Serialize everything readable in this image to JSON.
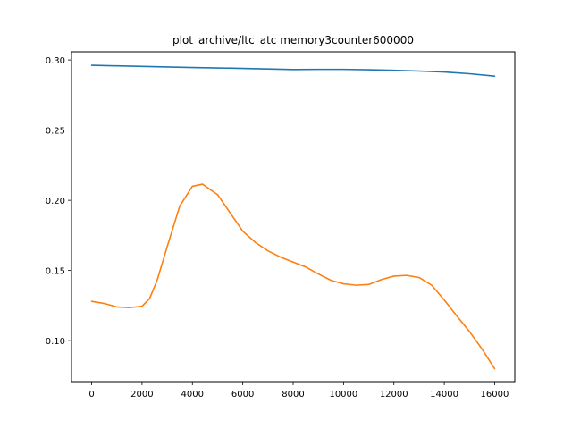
{
  "chart_data": {
    "type": "line",
    "title": "plot_archive/ltc_atc memory3counter600000",
    "xlabel": "",
    "ylabel": "",
    "xlim": [
      -800,
      16800
    ],
    "ylim": [
      0.0708,
      0.3058
    ],
    "x_ticks": [
      0,
      2000,
      4000,
      6000,
      8000,
      10000,
      12000,
      14000,
      16000
    ],
    "x_tick_labels": [
      "0",
      "2000",
      "4000",
      "6000",
      "8000",
      "10000",
      "12000",
      "14000",
      "16000"
    ],
    "y_ticks": [
      0.1,
      0.15,
      0.2,
      0.25,
      0.3
    ],
    "y_tick_labels": [
      "0.10",
      "0.15",
      "0.20",
      "0.25",
      "0.30"
    ],
    "grid": false,
    "series": [
      {
        "color": "#1f77b4",
        "x": [
          0,
          1000,
          2000,
          3000,
          4000,
          5000,
          6000,
          7000,
          8000,
          9000,
          10000,
          11000,
          12000,
          13000,
          14000,
          15000,
          16000
        ],
        "y": [
          0.2962,
          0.2958,
          0.2954,
          0.295,
          0.2946,
          0.2943,
          0.294,
          0.2936,
          0.2932,
          0.2933,
          0.2933,
          0.293,
          0.2926,
          0.2921,
          0.2914,
          0.2902,
          0.2885
        ]
      },
      {
        "color": "#ff7f0e",
        "x": [
          0,
          500,
          1000,
          1500,
          2000,
          2300,
          2600,
          3000,
          3500,
          4000,
          4400,
          5000,
          5500,
          6000,
          6500,
          7000,
          7500,
          8000,
          8500,
          9000,
          9500,
          10000,
          10500,
          11000,
          11500,
          12000,
          12500,
          13000,
          13500,
          14000,
          14500,
          15000,
          15500,
          16000
        ],
        "y": [
          0.128,
          0.1265,
          0.124,
          0.1235,
          0.1245,
          0.13,
          0.143,
          0.167,
          0.196,
          0.21,
          0.2115,
          0.204,
          0.191,
          0.178,
          0.17,
          0.164,
          0.1595,
          0.156,
          0.1525,
          0.1475,
          0.143,
          0.1405,
          0.1395,
          0.14,
          0.1435,
          0.146,
          0.1465,
          0.145,
          0.1395,
          0.129,
          0.1175,
          0.1065,
          0.094,
          0.08
        ]
      }
    ]
  }
}
